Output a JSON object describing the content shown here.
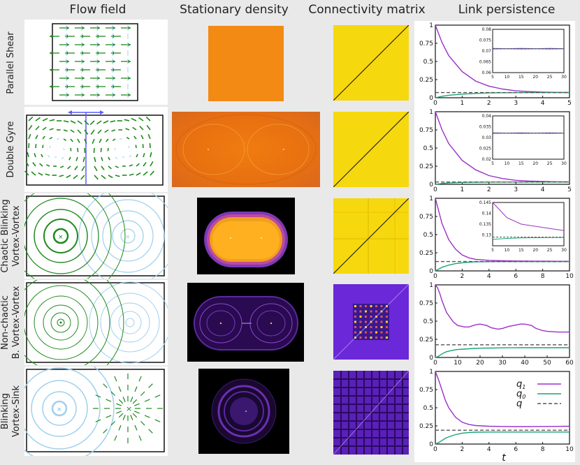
{
  "headers": {
    "flow": "Flow field",
    "density": "Stationary density",
    "connectivity": "Connectivity matrix",
    "persistence": "Link persistence"
  },
  "rows": [
    {
      "label_lines": [
        "Parallel Shear"
      ]
    },
    {
      "label_lines": [
        "Double Gyre"
      ]
    },
    {
      "label_lines": [
        "Chaotic Blinking",
        "Vortex-Vortex"
      ]
    },
    {
      "label_lines": [
        "Non-chaotic",
        "B. Vortex-Vortex"
      ]
    },
    {
      "label_lines": [
        "Blinking",
        "Vortex-Sink"
      ]
    }
  ],
  "colors": {
    "q1": "#9b30c8",
    "q0": "#1aa37a",
    "q": "#555555",
    "flow_green": "#1e8a1e",
    "flow_light": "#9fd0ee"
  },
  "legend": {
    "q1": "q1",
    "q0": "q0",
    "q": "q"
  },
  "t_label": "t",
  "chart_data": [
    {
      "type": "line",
      "panel": "Parallel Shear",
      "x": [
        0,
        0.25,
        0.5,
        1,
        1.5,
        2,
        2.5,
        3,
        3.5,
        4,
        4.5,
        5
      ],
      "series": [
        {
          "name": "q1",
          "values": [
            1.0,
            0.76,
            0.58,
            0.36,
            0.23,
            0.16,
            0.12,
            0.095,
            0.085,
            0.078,
            0.074,
            0.072
          ]
        },
        {
          "name": "q0",
          "values": [
            0.0,
            0.02,
            0.035,
            0.05,
            0.06,
            0.066,
            0.069,
            0.07,
            0.071,
            0.071,
            0.071,
            0.071
          ]
        },
        {
          "name": "q",
          "values": [
            0.071,
            0.071,
            0.071,
            0.071,
            0.071,
            0.071,
            0.071,
            0.071,
            0.071,
            0.071,
            0.071,
            0.071
          ]
        }
      ],
      "xlim": [
        0,
        5
      ],
      "ylim": [
        0,
        1
      ],
      "xticks": [
        "0",
        "1",
        "2",
        "3",
        "4",
        "5"
      ],
      "yticks": [
        "0",
        "0.25",
        "0.5",
        "0.75",
        "1"
      ],
      "inset": {
        "xlim": [
          5,
          30
        ],
        "ylim": [
          0.06,
          0.08
        ],
        "xticks": [
          "5",
          "10",
          "15",
          "20",
          "25",
          "30"
        ],
        "yticks": [
          "0.06",
          "0.065",
          "0.07",
          "0.075",
          "0.08"
        ],
        "series": [
          {
            "name": "q1",
            "values": [
              0.0712,
              0.0711,
              0.0712,
              0.0711,
              0.0712,
              0.0711
            ]
          },
          {
            "name": "q0",
            "values": [
              0.0709,
              0.071,
              0.0709,
              0.071,
              0.0709,
              0.071
            ]
          },
          {
            "name": "q",
            "values": [
              0.071,
              0.071,
              0.071,
              0.071,
              0.071,
              0.071
            ]
          }
        ]
      }
    },
    {
      "type": "line",
      "panel": "Double Gyre",
      "x": [
        0,
        0.25,
        0.5,
        1,
        1.5,
        2,
        2.5,
        3,
        3.5,
        4,
        4.5,
        5
      ],
      "series": [
        {
          "name": "q1",
          "values": [
            1.0,
            0.75,
            0.56,
            0.33,
            0.2,
            0.12,
            0.08,
            0.055,
            0.045,
            0.04,
            0.036,
            0.034
          ]
        },
        {
          "name": "q0",
          "values": [
            0.0,
            0.012,
            0.02,
            0.026,
            0.029,
            0.031,
            0.032,
            0.032,
            0.032,
            0.032,
            0.032,
            0.032
          ]
        },
        {
          "name": "q",
          "values": [
            0.032,
            0.032,
            0.032,
            0.032,
            0.032,
            0.032,
            0.032,
            0.032,
            0.032,
            0.032,
            0.032,
            0.032
          ]
        }
      ],
      "xlim": [
        0,
        5
      ],
      "ylim": [
        0,
        1
      ],
      "xticks": [
        "0",
        "1",
        "2",
        "3",
        "4",
        "5"
      ],
      "yticks": [
        "0",
        "0.25",
        "0.5",
        "0.75",
        "1"
      ],
      "inset": {
        "xlim": [
          5,
          30
        ],
        "ylim": [
          0.02,
          0.04
        ],
        "xticks": [
          "5",
          "10",
          "15",
          "20",
          "25",
          "30"
        ],
        "yticks": [
          "0.02",
          "0.025",
          "0.03",
          "0.035",
          "0.04"
        ],
        "series": [
          {
            "name": "q1",
            "values": [
              0.0322,
              0.0321,
              0.0322,
              0.0321,
              0.0322,
              0.0321
            ]
          },
          {
            "name": "q0",
            "values": [
              0.0319,
              0.032,
              0.0319,
              0.032,
              0.0319,
              0.032
            ]
          },
          {
            "name": "q",
            "values": [
              0.032,
              0.032,
              0.032,
              0.032,
              0.032,
              0.032
            ]
          }
        ]
      }
    },
    {
      "type": "line",
      "panel": "Chaotic Blinking Vortex-Vortex",
      "x": [
        0,
        0.5,
        1,
        1.5,
        2,
        2.5,
        3,
        4,
        5,
        6,
        7,
        8,
        9,
        10
      ],
      "series": [
        {
          "name": "q1",
          "values": [
            1.0,
            0.65,
            0.43,
            0.3,
            0.22,
            0.18,
            0.16,
            0.145,
            0.14,
            0.137,
            0.135,
            0.134,
            0.133,
            0.132
          ]
        },
        {
          "name": "q0",
          "values": [
            0.0,
            0.05,
            0.08,
            0.1,
            0.112,
            0.12,
            0.124,
            0.127,
            0.128,
            0.128,
            0.128,
            0.128,
            0.128,
            0.128
          ]
        },
        {
          "name": "q",
          "values": [
            0.129,
            0.129,
            0.129,
            0.129,
            0.129,
            0.129,
            0.129,
            0.129,
            0.129,
            0.129,
            0.129,
            0.129,
            0.129,
            0.129
          ]
        }
      ],
      "xlim": [
        0,
        10
      ],
      "ylim": [
        0,
        1
      ],
      "xticks": [
        "0",
        "2",
        "4",
        "6",
        "8",
        "10"
      ],
      "yticks": [
        "0",
        "0.25",
        "0.5",
        "0.75",
        "1"
      ],
      "inset": {
        "xlim": [
          5,
          30
        ],
        "ylim": [
          0.125,
          0.145
        ],
        "xticks": [
          "5",
          "10",
          "15",
          "20",
          "25",
          "30"
        ],
        "yticks": [
          "0.13",
          "0.135",
          "0.14",
          "0.145"
        ],
        "series": [
          {
            "name": "q1",
            "values": [
              0.145,
              0.138,
              0.135,
              0.134,
              0.133,
              0.132
            ]
          },
          {
            "name": "q0",
            "values": [
              0.128,
              0.1284,
              0.1286,
              0.1287,
              0.1288,
              0.1288
            ]
          },
          {
            "name": "q",
            "values": [
              0.129,
              0.129,
              0.129,
              0.129,
              0.129,
              0.129
            ]
          }
        ]
      }
    },
    {
      "type": "line",
      "panel": "Non-chaotic B. Vortex-Vortex",
      "x": [
        0,
        1,
        2,
        3,
        5,
        8,
        10,
        13,
        15,
        18,
        20,
        23,
        25,
        28,
        30,
        33,
        35,
        38,
        40,
        43,
        45,
        48,
        50,
        55,
        60
      ],
      "series": [
        {
          "name": "q1",
          "values": [
            1.0,
            0.96,
            0.88,
            0.78,
            0.62,
            0.49,
            0.44,
            0.42,
            0.42,
            0.45,
            0.46,
            0.44,
            0.41,
            0.39,
            0.4,
            0.43,
            0.44,
            0.46,
            0.46,
            0.44,
            0.4,
            0.37,
            0.36,
            0.35,
            0.35
          ]
        },
        {
          "name": "q0",
          "values": [
            0.0,
            0.01,
            0.03,
            0.05,
            0.08,
            0.1,
            0.11,
            0.115,
            0.12,
            0.125,
            0.128,
            0.13,
            0.13,
            0.132,
            0.133,
            0.134,
            0.134,
            0.135,
            0.135,
            0.135,
            0.135,
            0.135,
            0.135,
            0.135,
            0.135
          ]
        },
        {
          "name": "q",
          "values": [
            0.175,
            0.175,
            0.175,
            0.175,
            0.175,
            0.175,
            0.175,
            0.175,
            0.175,
            0.175,
            0.175,
            0.175,
            0.175,
            0.175,
            0.175,
            0.175,
            0.175,
            0.175,
            0.175,
            0.175,
            0.175,
            0.175,
            0.175,
            0.175,
            0.175
          ]
        }
      ],
      "xlim": [
        0,
        60
      ],
      "ylim": [
        0,
        1
      ],
      "xticks": [
        "0",
        "10",
        "20",
        "30",
        "40",
        "50",
        "60"
      ],
      "yticks": [
        "0",
        "0.25",
        "0.5",
        "0.75",
        "1"
      ]
    },
    {
      "type": "line",
      "panel": "Blinking Vortex-Sink",
      "x": [
        0,
        0.25,
        0.5,
        0.75,
        1,
        1.5,
        2,
        2.5,
        3,
        4,
        5,
        6,
        7,
        8,
        9,
        10
      ],
      "series": [
        {
          "name": "q1",
          "values": [
            1.0,
            0.88,
            0.74,
            0.6,
            0.5,
            0.37,
            0.3,
            0.27,
            0.255,
            0.245,
            0.242,
            0.24,
            0.24,
            0.242,
            0.243,
            0.245
          ]
        },
        {
          "name": "q0",
          "values": [
            0.0,
            0.02,
            0.05,
            0.08,
            0.1,
            0.13,
            0.15,
            0.16,
            0.163,
            0.165,
            0.165,
            0.165,
            0.165,
            0.165,
            0.165,
            0.165
          ]
        },
        {
          "name": "q",
          "values": [
            0.19,
            0.19,
            0.19,
            0.19,
            0.19,
            0.19,
            0.19,
            0.19,
            0.19,
            0.19,
            0.19,
            0.19,
            0.19,
            0.19,
            0.19,
            0.19
          ]
        }
      ],
      "xlim": [
        0,
        10
      ],
      "ylim": [
        0,
        1
      ],
      "xticks": [
        "0",
        "2",
        "4",
        "6",
        "8",
        "10"
      ],
      "yticks": [
        "0",
        "0.25",
        "0.5",
        "0.75",
        "1"
      ],
      "xlabel": "t"
    }
  ]
}
